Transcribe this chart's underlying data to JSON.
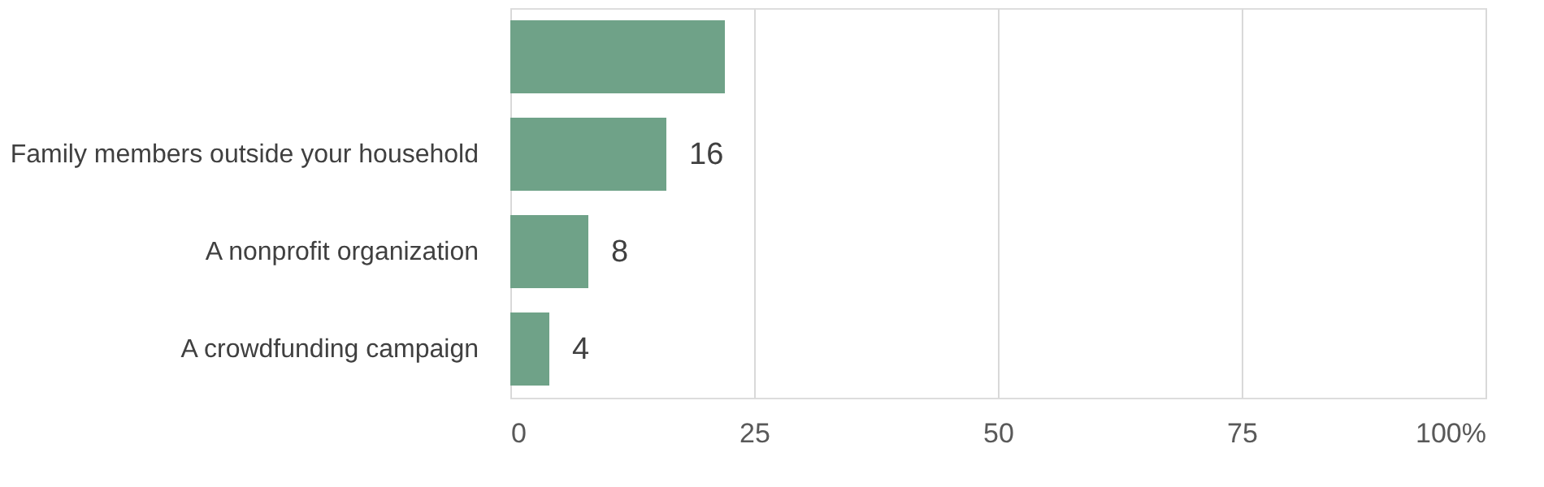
{
  "chart_data": {
    "type": "bar",
    "orientation": "horizontal",
    "categories": [
      null,
      "Family members outside your household",
      "A nonprofit organization",
      "A crowdfunding campaign"
    ],
    "values": [
      22,
      16,
      8,
      4
    ],
    "value_labels": [
      null,
      "16",
      "8",
      "4"
    ],
    "color": "#6fa288",
    "xlim": [
      0,
      100
    ],
    "xticks": [
      0,
      25,
      50,
      75,
      {
        "value": 100,
        "label": "100%"
      }
    ],
    "grid": "x"
  }
}
